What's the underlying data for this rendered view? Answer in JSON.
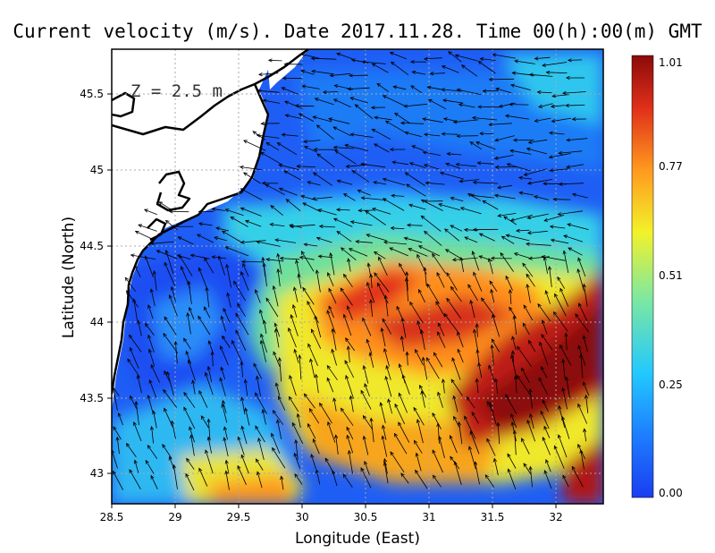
{
  "title": "Current velocity (m/s). Date 2017.11.28. Time 00(h):00(m) GMT",
  "depth_label": "Z = 2.5 m",
  "xlabel": "Longitude (East)",
  "ylabel": "Latitude (North)",
  "x_ticks": [
    "28.5",
    "29",
    "29.5",
    "30",
    "30.5",
    "31",
    "31.5",
    "32"
  ],
  "y_ticks": [
    "43",
    "43.5",
    "44",
    "44.5",
    "45",
    "45.5"
  ],
  "colorbar": {
    "ticks": [
      "0.00",
      "0.25",
      "0.51",
      "0.77",
      "1.01"
    ],
    "min": 0.0,
    "max": 1.01,
    "colors": [
      "#1a3df0",
      "#1e7dff",
      "#22c8ff",
      "#7ee8a0",
      "#f2f22a",
      "#ff9a1e",
      "#e0301a",
      "#8b0a0a"
    ]
  },
  "chart_data": {
    "type": "heatmap",
    "title": "Current velocity (m/s). Date 2017.11.28. Time 00(h):00(m) GMT",
    "xlabel": "Longitude (East)",
    "ylabel": "Latitude (North)",
    "xlim": [
      28.5,
      32.4
    ],
    "ylim": [
      42.8,
      45.8
    ],
    "value_range": [
      0.0,
      1.01
    ],
    "grid": true,
    "overlay": "velocity vectors (arrows)"
  }
}
